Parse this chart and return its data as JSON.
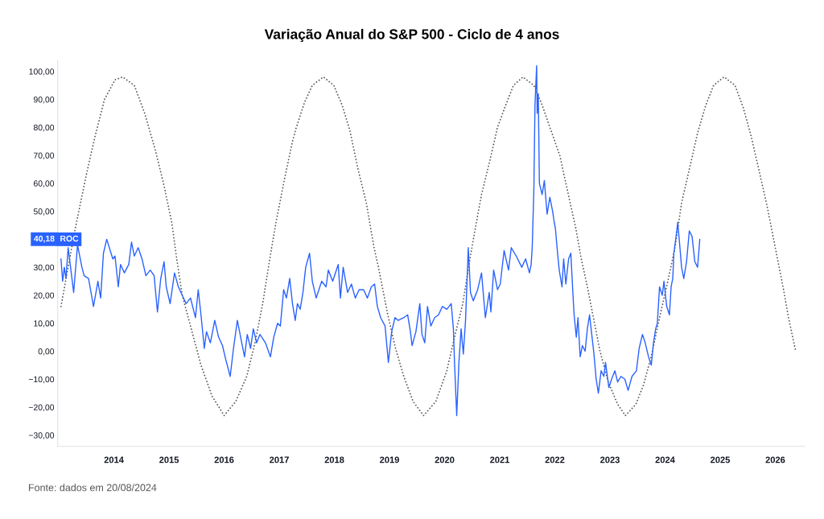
{
  "chart_data": {
    "type": "line",
    "title": "Variação Anual do S&P 500 - Ciclo de 4 anos",
    "annotations": [
      "Fonte: dados em 20/08/2024",
      "40,18"
    ],
    "series": [
      {
        "name": "ROC",
        "color": "#2962ff",
        "line_style": "solid",
        "x": [
          2013.04,
          2013.07,
          2013.1,
          2013.13,
          2013.17,
          2013.27,
          2013.34,
          2013.42,
          2013.46,
          2013.54,
          2013.63,
          2013.71,
          2013.76,
          2013.81,
          2013.87,
          2013.98,
          2014.02,
          2014.08,
          2014.12,
          2014.19,
          2014.27,
          2014.32,
          2014.37,
          2014.44,
          2014.51,
          2014.58,
          2014.66,
          2014.73,
          2014.79,
          2014.85,
          2014.91,
          2014.95,
          2015.02,
          2015.1,
          2015.17,
          2015.24,
          2015.31,
          2015.39,
          2015.48,
          2015.53,
          2015.58,
          2015.64,
          2015.68,
          2015.75,
          2015.83,
          2015.9,
          2015.97,
          2016.03,
          2016.11,
          2016.17,
          2016.24,
          2016.31,
          2016.37,
          2016.42,
          2016.48,
          2016.53,
          2016.59,
          2016.65,
          2016.75,
          2016.84,
          2016.9,
          2016.97,
          2017.02,
          2017.08,
          2017.13,
          2017.19,
          2017.24,
          2017.29,
          2017.33,
          2017.38,
          2017.43,
          2017.48,
          2017.55,
          2017.6,
          2017.67,
          2017.72,
          2017.77,
          2017.85,
          2017.89,
          2017.97,
          2018.07,
          2018.11,
          2018.16,
          2018.24,
          2018.31,
          2018.38,
          2018.45,
          2018.53,
          2018.6,
          2018.67,
          2018.73,
          2018.78,
          2018.84,
          2018.92,
          2018.98,
          2019.04,
          2019.1,
          2019.16,
          2019.26,
          2019.33,
          2019.38,
          2019.41,
          2019.48,
          2019.55,
          2019.59,
          2019.64,
          2019.69,
          2019.75,
          2019.82,
          2019.89,
          2019.96,
          2020.04,
          2020.12,
          2020.16,
          2020.18,
          2020.22,
          2020.26,
          2020.3,
          2020.34,
          2020.38,
          2020.43,
          2020.47,
          2020.52,
          2020.6,
          2020.67,
          2020.74,
          2020.81,
          2020.84,
          2020.89,
          2020.96,
          2021.01,
          2021.08,
          2021.16,
          2021.21,
          2021.3,
          2021.4,
          2021.47,
          2021.54,
          2021.57,
          2021.59,
          2021.62,
          2021.64,
          2021.67,
          2021.68,
          2021.7,
          2021.72,
          2021.77,
          2021.81,
          2021.86,
          2021.91,
          2021.96,
          2021.99,
          2022.01,
          2022.05,
          2022.08,
          2022.13,
          2022.16,
          2022.2,
          2022.25,
          2022.29,
          2022.33,
          2022.35,
          2022.39,
          2022.42,
          2022.46,
          2022.5,
          2022.55,
          2022.59,
          2022.63,
          2022.67,
          2022.71,
          2022.75,
          2022.79,
          2022.84,
          2022.89,
          2022.92,
          2022.98,
          2023.03,
          2023.09,
          2023.14,
          2023.2,
          2023.27,
          2023.33,
          2023.4,
          2023.48,
          2023.53,
          2023.59,
          2023.64,
          2023.7,
          2023.75,
          2023.79,
          2023.83,
          2023.86,
          2023.9,
          2023.95,
          2023.98,
          2024.03,
          2024.08,
          2024.11,
          2024.14,
          2024.16,
          2024.2,
          2024.23,
          2024.27,
          2024.3,
          2024.34,
          2024.39,
          2024.44,
          2024.49,
          2024.54,
          2024.59,
          2024.61,
          2024.63
        ],
        "values": [
          33,
          25,
          30,
          26,
          37,
          21,
          38,
          30,
          27,
          26,
          16,
          25,
          19,
          35,
          40,
          33,
          34,
          23,
          31,
          28,
          31,
          39,
          34,
          37,
          33,
          27,
          29,
          27,
          14,
          26,
          32,
          23,
          17,
          28,
          23,
          20,
          17,
          19,
          12,
          22,
          13,
          1,
          7,
          3,
          11,
          5,
          2,
          -3,
          -9,
          1,
          11,
          4,
          -2,
          6,
          1,
          8,
          3,
          6,
          3,
          -2,
          5,
          10,
          9,
          22,
          19,
          26,
          17,
          11,
          17,
          15,
          21,
          30,
          35,
          25,
          19,
          22,
          25,
          23,
          29,
          25,
          31,
          19,
          30,
          21,
          24,
          19,
          22,
          22,
          19,
          23,
          24,
          16,
          12,
          9,
          -4,
          7,
          12,
          11,
          12,
          13,
          7,
          2,
          7,
          17,
          6,
          3,
          16,
          9,
          12,
          13,
          16,
          15,
          17,
          8,
          -4,
          -23,
          -4,
          8,
          -1,
          11,
          37,
          21,
          18,
          22,
          28,
          12,
          21,
          14,
          29,
          22,
          24,
          36,
          29,
          37,
          34,
          30,
          33,
          28,
          31,
          37,
          58,
          88,
          102,
          85,
          92,
          60,
          56,
          61,
          49,
          55,
          50,
          46,
          44,
          35,
          29,
          23,
          33,
          24,
          33,
          35,
          20,
          13,
          5,
          12,
          -2,
          2,
          0,
          8,
          13,
          6,
          -1,
          -10,
          -15,
          -7,
          -9,
          -4,
          -13,
          -10,
          -7,
          -11,
          -9,
          -10,
          -14,
          -9,
          -7,
          1,
          6,
          3,
          -2,
          -5,
          3,
          8,
          10,
          23,
          20,
          25,
          16,
          13,
          23,
          26,
          35,
          41,
          46,
          37,
          30,
          26,
          32,
          43,
          41,
          32,
          30,
          35,
          40
        ]
      },
      {
        "color": "#555555",
        "line_style": "dotted",
        "x": [
          2013.04,
          2013.29,
          2013.51,
          2013.66,
          2013.83,
          2014.02,
          2014.16,
          2014.37,
          2014.56,
          2014.75,
          2014.9,
          2015.05,
          2015.14,
          2015.24,
          2015.39,
          2015.58,
          2015.78,
          2016.0,
          2016.21,
          2016.41,
          2016.56,
          2016.7,
          2016.82,
          2016.94,
          2017.09,
          2017.24,
          2017.31,
          2017.46,
          2017.6,
          2017.8,
          2017.99,
          2018.14,
          2018.28,
          2018.43,
          2018.58,
          2018.72,
          2018.8,
          2018.97,
          2019.11,
          2019.26,
          2019.43,
          2019.62,
          2019.84,
          2020.04,
          2020.18,
          2020.33,
          2020.46,
          2020.54,
          2020.67,
          2020.82,
          2020.96,
          2021.11,
          2021.25,
          2021.42,
          2021.62,
          2021.77,
          2021.91,
          2022.09,
          2022.19,
          2022.29,
          2022.38,
          2022.48,
          2022.58,
          2022.7,
          2022.82,
          2022.97,
          2023.14,
          2023.28,
          2023.47,
          2023.61,
          2023.76,
          2023.9,
          2024.05,
          2024.18,
          2024.3,
          2024.44,
          2024.59,
          2024.74,
          2024.88,
          2025.07,
          2025.27,
          2025.42,
          2025.56,
          2025.7,
          2025.85,
          2026.0,
          2026.05,
          2026.15,
          2026.24,
          2026.37
        ],
        "values": [
          16,
          43,
          64,
          77,
          90,
          97,
          98,
          95,
          85,
          72,
          60,
          46,
          33,
          20,
          9,
          -5,
          -16,
          -23,
          -18,
          -9,
          3,
          17,
          32,
          46,
          61,
          75,
          80,
          89,
          95,
          98,
          95,
          88,
          79,
          65,
          53,
          37,
          30,
          13,
          1,
          -9,
          -18,
          -23,
          -18,
          -7,
          5,
          17,
          33,
          42,
          56,
          68,
          80,
          88,
          95,
          98,
          95,
          88,
          80,
          70,
          61,
          52,
          44,
          33,
          24,
          12,
          0,
          -11,
          -19,
          -23,
          -19,
          -12,
          -1,
          12,
          25,
          37,
          53,
          65,
          78,
          88,
          95,
          98,
          95,
          87,
          77,
          65,
          52,
          37,
          32,
          22,
          12,
          0
        ]
      }
    ],
    "xlim": [
      2012.98,
      2026.54
    ],
    "xticks": [
      2014,
      2015,
      2016,
      2017,
      2018,
      2019,
      2020,
      2021,
      2022,
      2023,
      2024,
      2025,
      2026
    ],
    "ylim": [
      -34,
      104
    ],
    "yticks": [
      {
        "value": 100,
        "label": "100,00"
      },
      {
        "value": 90,
        "label": "90,00"
      },
      {
        "value": 80,
        "label": "80,00"
      },
      {
        "value": 70,
        "label": "70,00"
      },
      {
        "value": 60,
        "label": "60,00"
      },
      {
        "value": 50,
        "label": "50,00"
      },
      {
        "value": 30,
        "label": "30,00"
      },
      {
        "value": 20,
        "label": "20,00"
      },
      {
        "value": 10,
        "label": "10,00"
      },
      {
        "value": 0,
        "label": "0,00"
      },
      {
        "value": -10,
        "label": "−10,00"
      },
      {
        "value": -20,
        "label": "−20,00"
      },
      {
        "value": -30,
        "label": "−30,00"
      }
    ]
  }
}
